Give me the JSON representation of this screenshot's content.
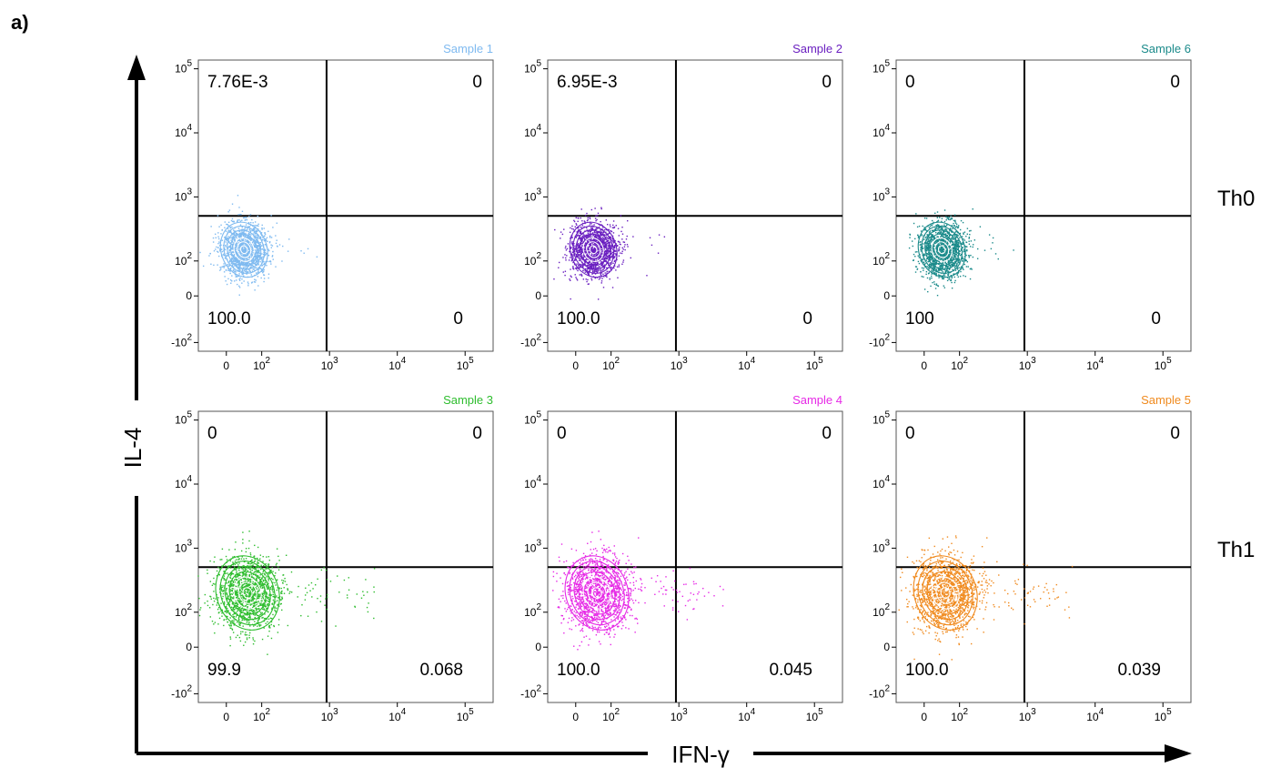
{
  "figure": {
    "panel_label": "a)",
    "y_axis_label": "IL-4",
    "x_axis_label": "IFN-γ",
    "row_labels": [
      "Th0",
      "Th1"
    ]
  },
  "chart_data": {
    "type": "scatter",
    "subtype": "flow-cytometry-contour-quadrant",
    "x_tick_labels": [
      "0",
      "10^2",
      "10^3",
      "10^4",
      "10^5"
    ],
    "y_tick_labels": [
      "-10^2",
      "0",
      "10^2",
      "10^3",
      "10^4",
      "10^5"
    ],
    "gate_x": 1000,
    "gate_y": 1000,
    "panels": [
      {
        "title": "Sample 1",
        "color": "#7fbaf0",
        "row": "Th0",
        "quadrants": {
          "upper_left": "7.76E-3",
          "upper_right": "0",
          "lower_left": "100.0",
          "lower_right": "0"
        },
        "population_center": {
          "x": 50,
          "y": 150
        }
      },
      {
        "title": "Sample 2",
        "color": "#6a1fc0",
        "row": "Th0",
        "quadrants": {
          "upper_left": "6.95E-3",
          "upper_right": "0",
          "lower_left": "100.0",
          "lower_right": "0"
        },
        "population_center": {
          "x": 50,
          "y": 150
        }
      },
      {
        "title": "Sample 6",
        "color": "#1a8a8a",
        "row": "Th0",
        "quadrants": {
          "upper_left": "0",
          "upper_right": "0",
          "lower_left": "100",
          "lower_right": "0"
        },
        "population_center": {
          "x": 50,
          "y": 150
        }
      },
      {
        "title": "Sample 3",
        "color": "#2ebd2e",
        "row": "Th1",
        "quadrants": {
          "upper_left": "0",
          "upper_right": "0",
          "lower_left": "99.9",
          "lower_right": "0.068"
        },
        "population_center": {
          "x": 60,
          "y": 200
        }
      },
      {
        "title": "Sample 4",
        "color": "#e629e6",
        "row": "Th1",
        "quadrants": {
          "upper_left": "0",
          "upper_right": "0",
          "lower_left": "100.0",
          "lower_right": "0.045"
        },
        "population_center": {
          "x": 60,
          "y": 200
        }
      },
      {
        "title": "Sample 5",
        "color": "#f08a1e",
        "row": "Th1",
        "quadrants": {
          "upper_left": "0",
          "upper_right": "0",
          "lower_left": "100.0",
          "lower_right": "0.039"
        },
        "population_center": {
          "x": 60,
          "y": 200
        }
      }
    ]
  }
}
